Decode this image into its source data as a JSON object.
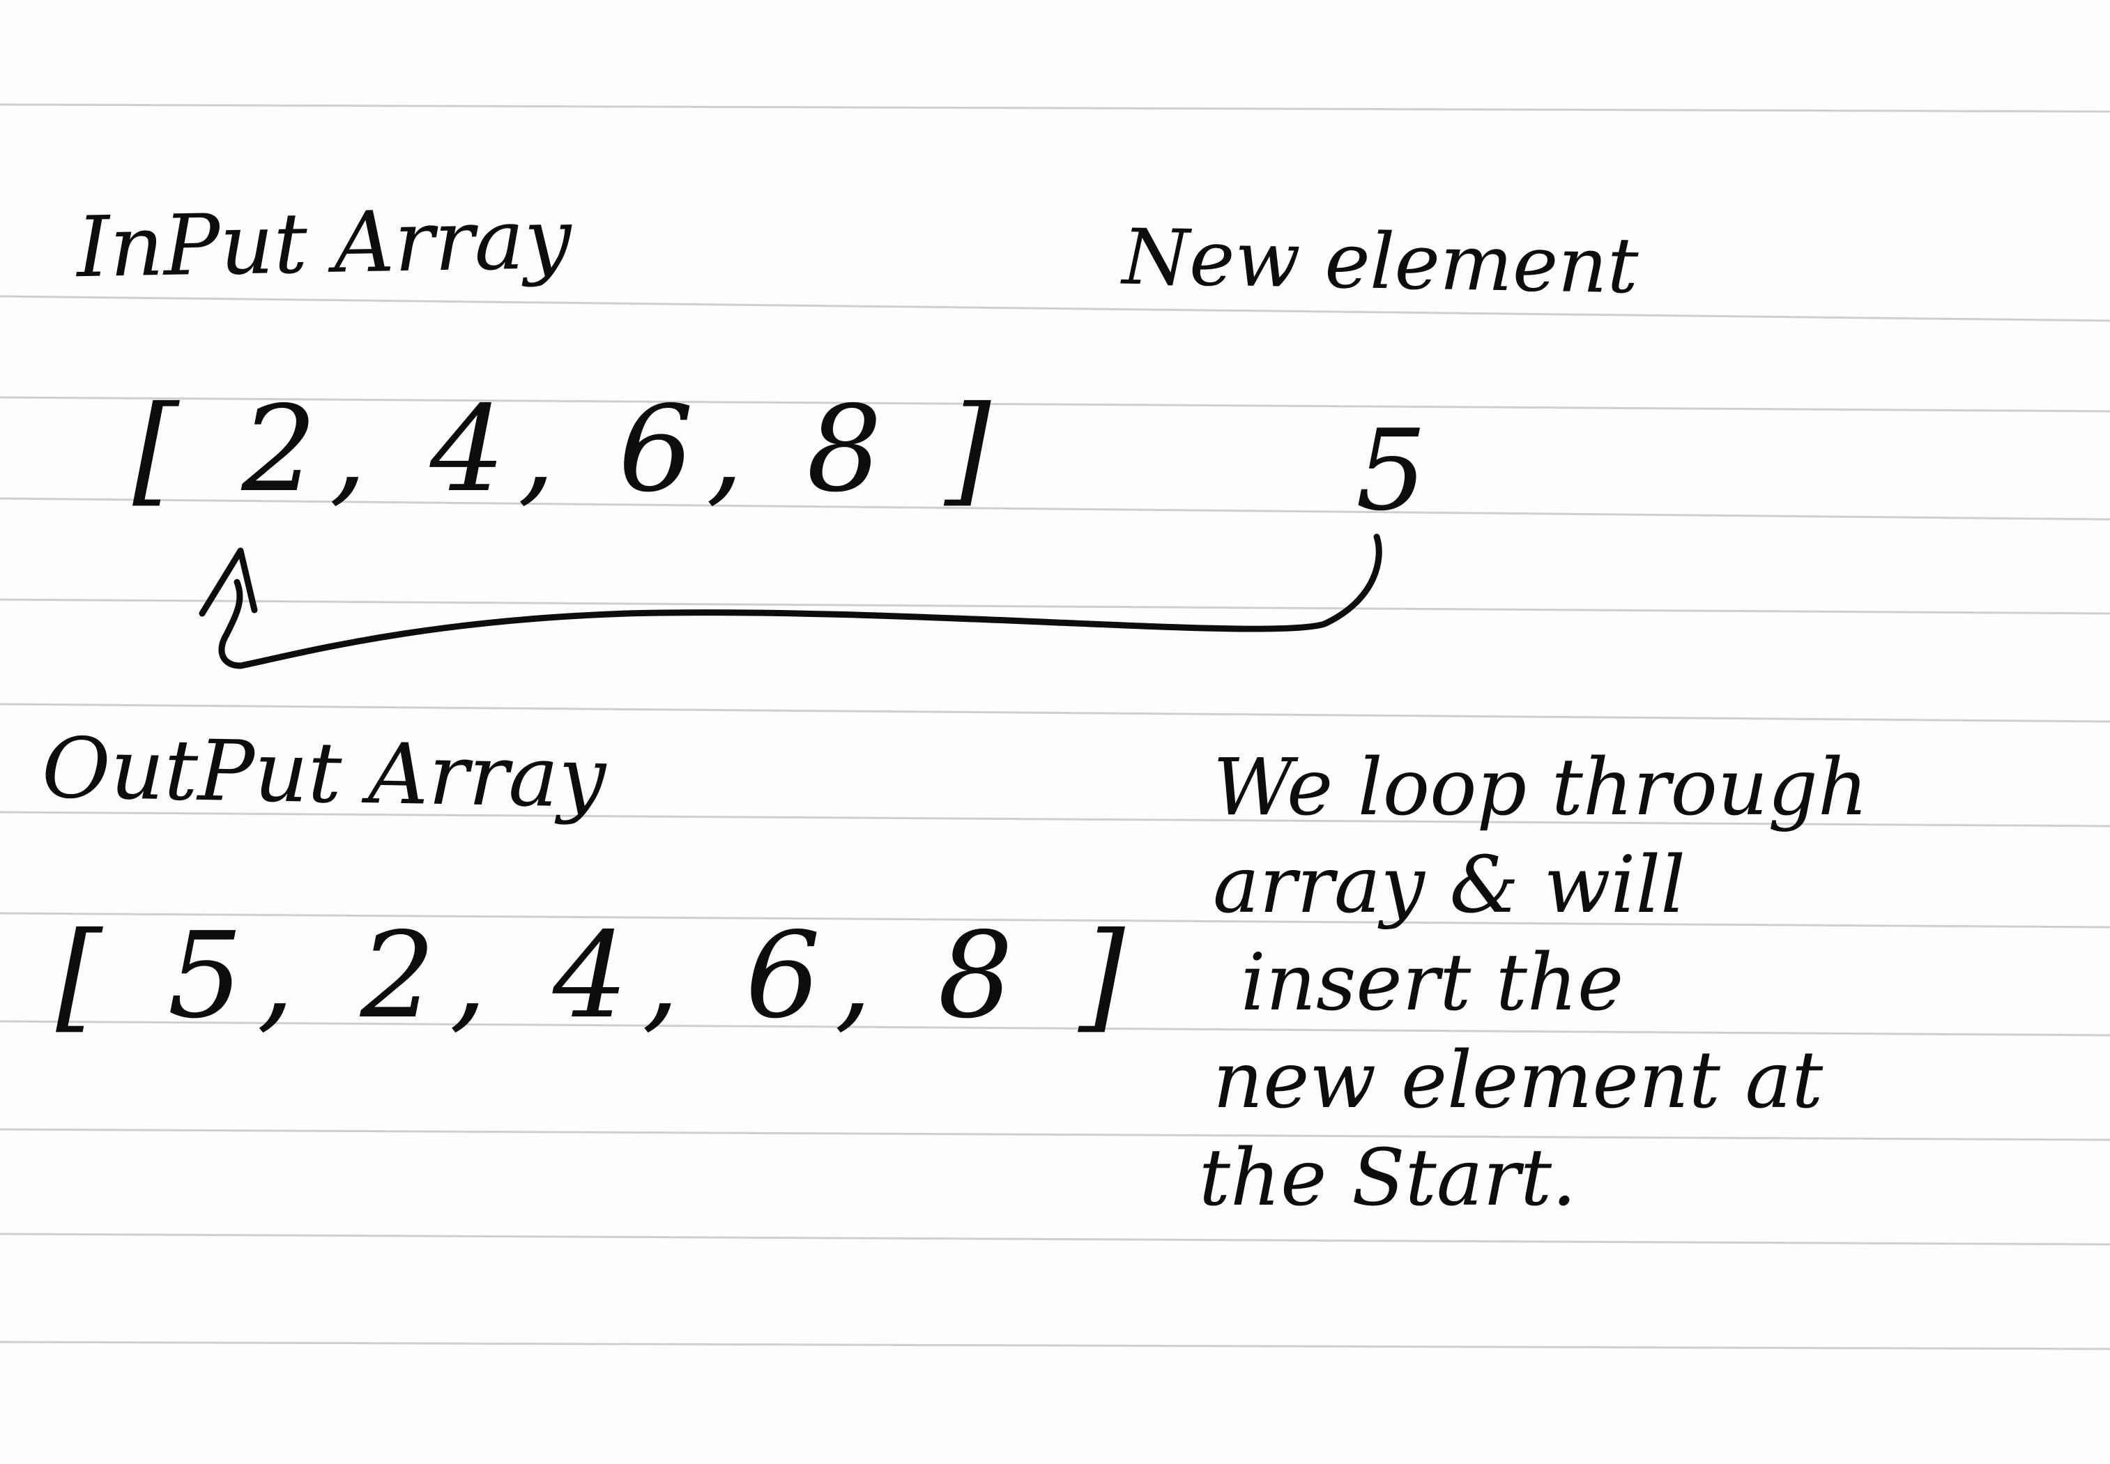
{
  "labels": {
    "input_array": "InPut Array",
    "new_element": "New element",
    "output_array": "OutPut Array"
  },
  "arrays": {
    "input": "[ 2, 4, 6, 8 ]",
    "output": "[ 5, 2, 4, 6, 8 ]"
  },
  "new_element_value": "5",
  "explanation": [
    "We loop through",
    "array & will",
    "insert the",
    "new element at",
    "the Start."
  ],
  "colors": {
    "ink": "#0d0d0d",
    "paper": "#fdfdfd",
    "rule_line": "#cfcfcf"
  }
}
